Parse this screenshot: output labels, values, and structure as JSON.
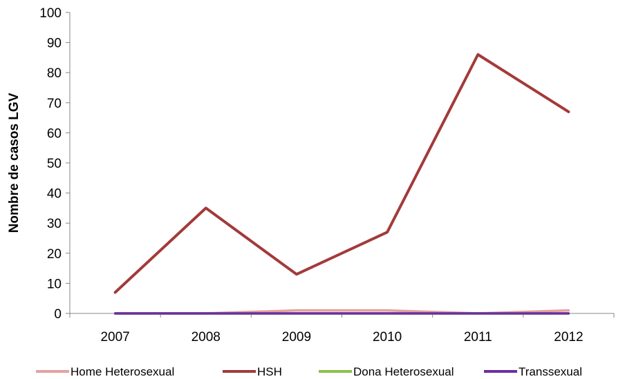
{
  "chart_data": {
    "type": "line",
    "title": "",
    "xlabel": "",
    "ylabel": "Nombre de casos LGV",
    "ylim": [
      0,
      100
    ],
    "yticks": [
      0,
      10,
      20,
      30,
      40,
      50,
      60,
      70,
      80,
      90,
      100
    ],
    "categories": [
      "2007",
      "2008",
      "2009",
      "2010",
      "2011",
      "2012"
    ],
    "grid": false,
    "legend_position": "bottom",
    "series": [
      {
        "name": "Home Heterosexual",
        "color": "#E6A0A0",
        "values": [
          0,
          0,
          1,
          1,
          0,
          1
        ]
      },
      {
        "name": "HSH",
        "color": "#A33A3A",
        "values": [
          7,
          35,
          13,
          27,
          86,
          67
        ]
      },
      {
        "name": "Dona Heterosexual",
        "color": "#8FBF4A",
        "values": [
          0,
          0,
          0,
          0,
          0,
          0
        ]
      },
      {
        "name": "Transsexual",
        "color": "#6A2FA0",
        "values": [
          0,
          0,
          0,
          0,
          0,
          0
        ]
      }
    ]
  }
}
